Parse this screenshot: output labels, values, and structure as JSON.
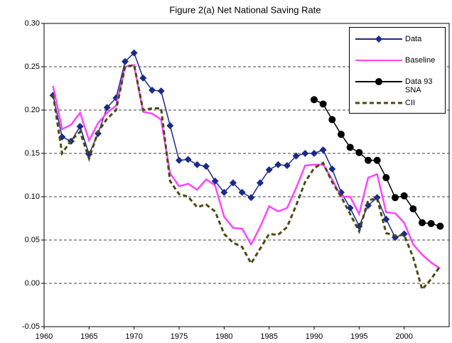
{
  "chart_data": {
    "type": "line",
    "title": "Figure 2(a) Net National Saving Rate",
    "xlim": [
      1960,
      2005
    ],
    "xticks": [
      1960,
      1965,
      1970,
      1975,
      1980,
      1985,
      1990,
      1995,
      2000
    ],
    "ylim": [
      -0.05,
      0.3
    ],
    "yticks": [
      {
        "value": -0.05,
        "label": "-0.05"
      },
      {
        "value": 0,
        "label": "0.00"
      },
      {
        "value": 0.05,
        "label": "0.05"
      },
      {
        "value": 0.1,
        "label": "0.10"
      },
      {
        "value": 0.15,
        "label": "0.15"
      },
      {
        "value": 0.2,
        "label": "0.20"
      },
      {
        "value": 0.25,
        "label": "0.25"
      },
      {
        "value": 0.3,
        "label": "0.30"
      }
    ],
    "grid": true,
    "series": [
      {
        "name": "Data",
        "color": "#1a2a8c",
        "marker": "diamond",
        "dash": false,
        "x": [
          1961,
          1962,
          1963,
          1964,
          1965,
          1966,
          1967,
          1968,
          1969,
          1970,
          1971,
          1972,
          1973,
          1974,
          1975,
          1976,
          1977,
          1978,
          1979,
          1980,
          1981,
          1982,
          1983,
          1984,
          1985,
          1986,
          1987,
          1988,
          1989,
          1990,
          1991,
          1992,
          1993,
          1994,
          1995,
          1996,
          1997,
          1998,
          1999,
          2000
        ],
        "values": [
          0.217,
          0.169,
          0.164,
          0.181,
          0.149,
          0.173,
          0.203,
          0.214,
          0.256,
          0.266,
          0.237,
          0.223,
          0.222,
          0.182,
          0.142,
          0.143,
          0.137,
          0.135,
          0.118,
          0.105,
          0.116,
          0.105,
          0.099,
          0.116,
          0.131,
          0.137,
          0.136,
          0.147,
          0.15,
          0.15,
          0.154,
          0.132,
          0.105,
          0.087,
          0.066,
          0.09,
          0.099,
          0.074,
          0.053,
          0.057
        ]
      },
      {
        "name": "Baseline",
        "color": "#ff44ff",
        "marker": "none",
        "dash": false,
        "x": [
          1961,
          1962,
          1963,
          1964,
          1965,
          1966,
          1967,
          1968,
          1969,
          1970,
          1971,
          1972,
          1973,
          1974,
          1975,
          1976,
          1977,
          1978,
          1979,
          1980,
          1981,
          1982,
          1983,
          1984,
          1985,
          1986,
          1987,
          1988,
          1989,
          1990,
          1991,
          1992,
          1993,
          1994,
          1995,
          1996,
          1997,
          1998,
          1999,
          2000,
          2001,
          2002,
          2003,
          2004
        ],
        "values": [
          0.228,
          0.178,
          0.183,
          0.197,
          0.165,
          0.185,
          0.197,
          0.205,
          0.25,
          0.252,
          0.198,
          0.196,
          0.189,
          0.127,
          0.112,
          0.115,
          0.108,
          0.12,
          0.113,
          0.077,
          0.064,
          0.063,
          0.045,
          0.065,
          0.089,
          0.083,
          0.087,
          0.11,
          0.136,
          0.137,
          0.137,
          0.12,
          0.1,
          0.1,
          0.08,
          0.122,
          0.126,
          0.082,
          0.081,
          0.07,
          0.045,
          0.033,
          0.024,
          0.017
        ]
      },
      {
        "name": "Data 93 SNA",
        "color": "#000000",
        "marker": "circle",
        "dash": false,
        "x": [
          1990,
          1991,
          1992,
          1993,
          1994,
          1995,
          1996,
          1997,
          1998,
          1999,
          2000,
          2001,
          2002,
          2003,
          2004
        ],
        "values": [
          0.212,
          0.207,
          0.189,
          0.172,
          0.157,
          0.151,
          0.142,
          0.142,
          0.122,
          0.099,
          0.101,
          0.086,
          0.07,
          0.069,
          0.066
        ]
      },
      {
        "name": "CII",
        "color": "#4a4a12",
        "marker": "none",
        "dash": true,
        "x": [
          1961,
          1962,
          1963,
          1964,
          1965,
          1966,
          1967,
          1968,
          1969,
          1970,
          1971,
          1972,
          1973,
          1974,
          1975,
          1976,
          1977,
          1978,
          1979,
          1980,
          1981,
          1982,
          1983,
          1984,
          1985,
          1986,
          1987,
          1988,
          1989,
          1990,
          1991,
          1992,
          1993,
          1994,
          1995,
          1996,
          1997,
          1998,
          1999,
          2000,
          2001,
          2002,
          2003,
          2004
        ],
        "values": [
          0.218,
          0.15,
          0.165,
          0.175,
          0.144,
          0.175,
          0.19,
          0.2,
          0.25,
          0.252,
          0.2,
          0.202,
          0.202,
          0.118,
          0.103,
          0.1,
          0.088,
          0.091,
          0.083,
          0.057,
          0.047,
          0.042,
          0.023,
          0.04,
          0.057,
          0.056,
          0.065,
          0.09,
          0.117,
          0.133,
          0.139,
          0.117,
          0.1,
          0.08,
          0.06,
          0.096,
          0.098,
          0.058,
          0.055,
          0.056,
          0.03,
          -0.007,
          0.005,
          0.02
        ]
      }
    ]
  }
}
